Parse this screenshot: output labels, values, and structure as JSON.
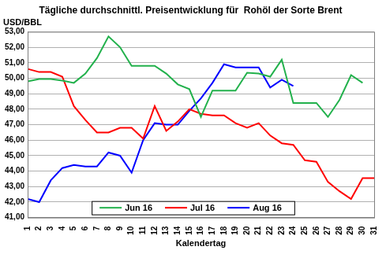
{
  "chart_data": {
    "type": "line",
    "title": "Tägliche durchschnittl. Preisentwicklung für  Rohöl der Sorte Brent",
    "y_label": "USD/BBL",
    "x_label": "Kalendertag",
    "categories": [
      "1",
      "2",
      "3",
      "4",
      "5",
      "6",
      "7",
      "8",
      "9",
      "10",
      "11",
      "12",
      "13",
      "14",
      "15",
      "16",
      "17",
      "18",
      "19",
      "20",
      "21",
      "22",
      "23",
      "24",
      "25",
      "26",
      "27",
      "28",
      "29",
      "30",
      "31"
    ],
    "series": [
      {
        "name": "Jun 16",
        "color": "#22b14c",
        "values": [
          49.8,
          49.95,
          49.95,
          49.85,
          49.7,
          50.3,
          51.3,
          52.7,
          52.0,
          50.8,
          50.8,
          50.8,
          50.3,
          49.6,
          49.3,
          47.5,
          49.2,
          49.2,
          49.2,
          50.35,
          50.3,
          50.1,
          51.2,
          48.4,
          48.4,
          48.4,
          47.5,
          48.6,
          50.2,
          49.7,
          null
        ]
      },
      {
        "name": "Jul 16",
        "color": "#ff0000",
        "values": [
          50.6,
          50.4,
          50.4,
          50.1,
          48.2,
          47.3,
          46.5,
          46.5,
          46.8,
          46.8,
          46.1,
          48.2,
          46.6,
          47.2,
          48.0,
          47.7,
          47.6,
          47.6,
          47.1,
          46.8,
          47.1,
          46.3,
          45.8,
          45.7,
          44.7,
          44.6,
          43.3,
          42.7,
          42.2,
          43.55,
          43.55
        ]
      },
      {
        "name": "Aug 16",
        "color": "#0000ff",
        "values": [
          42.2,
          42.0,
          43.4,
          44.2,
          44.4,
          44.3,
          44.3,
          45.2,
          45.0,
          43.9,
          46.0,
          47.1,
          47.0,
          47.0,
          47.9,
          48.7,
          49.7,
          50.9,
          50.7,
          50.7,
          50.7,
          49.4,
          49.9,
          49.5,
          null,
          null,
          null,
          null,
          null,
          null,
          null
        ]
      }
    ],
    "ylim": [
      41,
      53
    ],
    "yticks": [
      {
        "value": 41,
        "label": "41,00"
      },
      {
        "value": 42,
        "label": "42,00"
      },
      {
        "value": 43,
        "label": "43,00"
      },
      {
        "value": 44,
        "label": "44,00"
      },
      {
        "value": 45,
        "label": "45,00"
      },
      {
        "value": 46,
        "label": "46,00"
      },
      {
        "value": 47,
        "label": "47,00"
      },
      {
        "value": 48,
        "label": "48,00"
      },
      {
        "value": 49,
        "label": "49,00"
      },
      {
        "value": 50,
        "label": "50,00"
      },
      {
        "value": 51,
        "label": "51,00"
      },
      {
        "value": 52,
        "label": "52,00"
      },
      {
        "value": 53,
        "label": "53,00"
      }
    ],
    "grid": true,
    "legend": "bottom"
  }
}
